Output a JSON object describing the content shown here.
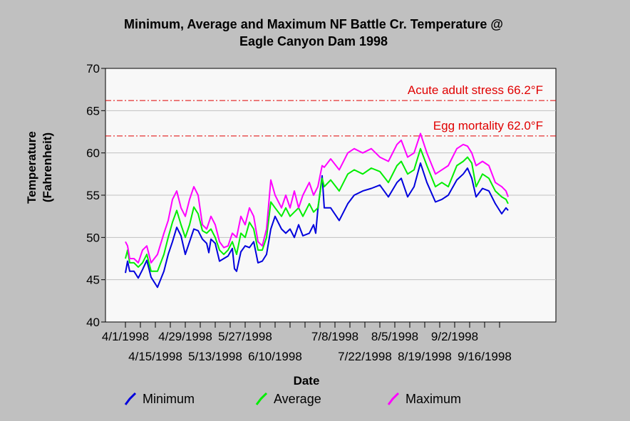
{
  "chart_data": {
    "type": "line",
    "title_lines": [
      "Minimum, Average and Maximum NF Battle  Cr. Temperature @",
      "Eagle Canyon Dam 1998"
    ],
    "xlabel": "Date",
    "ylabel_lines": [
      "Temperature",
      "(Fahrenheit)"
    ],
    "ylim": [
      40,
      70
    ],
    "y_ticks": [
      "40",
      "45",
      "50",
      "55",
      "60",
      "65",
      "70"
    ],
    "x_start": "1998-04-01",
    "x_end": "1998-09-30",
    "x_ticks_upper": [
      {
        "date": "1998-04-01",
        "label": "4/1/1998"
      },
      {
        "date": "1998-04-29",
        "label": "4/29/1998"
      },
      {
        "date": "1998-05-27",
        "label": "5/27/1998"
      },
      {
        "date": "1998-07-08",
        "label": "7/8/1998"
      },
      {
        "date": "1998-08-05",
        "label": "8/5/1998"
      },
      {
        "date": "1998-09-02",
        "label": "9/2/1998"
      }
    ],
    "x_ticks_lower": [
      {
        "date": "1998-04-15",
        "label": "4/15/1998"
      },
      {
        "date": "1998-05-13",
        "label": "5/13/1998"
      },
      {
        "date": "1998-06-10",
        "label": "6/10/1998"
      },
      {
        "date": "1998-07-22",
        "label": "7/22/1998"
      },
      {
        "date": "1998-08-19",
        "label": "8/19/1998"
      },
      {
        "date": "1998-09-16",
        "label": "9/16/1998"
      }
    ],
    "grid": "horizontal",
    "reference_lines": [
      {
        "y": 66.2,
        "label": "Acute adult stress 66.2°F",
        "color": "#e00000"
      },
      {
        "y": 62.0,
        "label": "Egg mortality 62.0°F",
        "color": "#e00000"
      }
    ],
    "series": [
      {
        "name": "Minimum",
        "color": "#0000dd",
        "points": [
          [
            "1998-04-01",
            45.8
          ],
          [
            "1998-04-02",
            47.2
          ],
          [
            "1998-04-03",
            46.0
          ],
          [
            "1998-04-05",
            46.0
          ],
          [
            "1998-04-07",
            45.2
          ],
          [
            "1998-04-09",
            46.2
          ],
          [
            "1998-04-11",
            47.3
          ],
          [
            "1998-04-13",
            45.3
          ],
          [
            "1998-04-16",
            44.1
          ],
          [
            "1998-04-19",
            46.0
          ],
          [
            "1998-04-21",
            48.0
          ],
          [
            "1998-04-23",
            49.5
          ],
          [
            "1998-04-25",
            51.2
          ],
          [
            "1998-04-27",
            50.2
          ],
          [
            "1998-04-29",
            48.0
          ],
          [
            "1998-05-01",
            49.5
          ],
          [
            "1998-05-03",
            51.0
          ],
          [
            "1998-05-05",
            50.8
          ],
          [
            "1998-05-07",
            49.8
          ],
          [
            "1998-05-09",
            49.3
          ],
          [
            "1998-05-10",
            48.2
          ],
          [
            "1998-05-11",
            49.8
          ],
          [
            "1998-05-13",
            49.3
          ],
          [
            "1998-05-15",
            47.2
          ],
          [
            "1998-05-17",
            47.5
          ],
          [
            "1998-05-19",
            47.8
          ],
          [
            "1998-05-21",
            48.7
          ],
          [
            "1998-05-22",
            46.3
          ],
          [
            "1998-05-23",
            46.0
          ],
          [
            "1998-05-25",
            48.3
          ],
          [
            "1998-05-27",
            49.0
          ],
          [
            "1998-05-29",
            48.8
          ],
          [
            "1998-05-31",
            49.5
          ],
          [
            "1998-06-02",
            47.0
          ],
          [
            "1998-06-04",
            47.2
          ],
          [
            "1998-06-06",
            48.0
          ],
          [
            "1998-06-08",
            51.0
          ],
          [
            "1998-06-10",
            52.5
          ],
          [
            "1998-06-13",
            51.0
          ],
          [
            "1998-06-15",
            50.5
          ],
          [
            "1998-06-17",
            51.0
          ],
          [
            "1998-06-19",
            50.0
          ],
          [
            "1998-06-21",
            51.5
          ],
          [
            "1998-06-23",
            50.2
          ],
          [
            "1998-06-26",
            50.5
          ],
          [
            "1998-06-28",
            51.5
          ],
          [
            "1998-06-29",
            50.5
          ],
          [
            "1998-06-30",
            53.3
          ],
          [
            "1998-07-02",
            57.3
          ],
          [
            "1998-07-03",
            53.5
          ],
          [
            "1998-07-06",
            53.5
          ],
          [
            "1998-07-10",
            52.0
          ],
          [
            "1998-07-14",
            54.0
          ],
          [
            "1998-07-17",
            55.0
          ],
          [
            "1998-07-21",
            55.5
          ],
          [
            "1998-07-25",
            55.8
          ],
          [
            "1998-07-29",
            56.2
          ],
          [
            "1998-08-02",
            54.8
          ],
          [
            "1998-08-06",
            56.5
          ],
          [
            "1998-08-08",
            57.0
          ],
          [
            "1998-08-11",
            54.8
          ],
          [
            "1998-08-14",
            56.0
          ],
          [
            "1998-08-17",
            58.8
          ],
          [
            "1998-08-20",
            56.5
          ],
          [
            "1998-08-24",
            54.2
          ],
          [
            "1998-08-27",
            54.5
          ],
          [
            "1998-08-30",
            55.0
          ],
          [
            "1998-09-03",
            56.8
          ],
          [
            "1998-09-06",
            57.5
          ],
          [
            "1998-09-08",
            58.2
          ],
          [
            "1998-09-10",
            57.0
          ],
          [
            "1998-09-12",
            54.8
          ],
          [
            "1998-09-15",
            55.8
          ],
          [
            "1998-09-18",
            55.5
          ],
          [
            "1998-09-21",
            54.0
          ],
          [
            "1998-09-24",
            52.8
          ],
          [
            "1998-09-26",
            53.5
          ],
          [
            "1998-09-27",
            53.2
          ]
        ]
      },
      {
        "name": "Average",
        "color": "#00ee00",
        "points": [
          [
            "1998-04-01",
            47.5
          ],
          [
            "1998-04-02",
            48.5
          ],
          [
            "1998-04-03",
            47.0
          ],
          [
            "1998-04-05",
            47.0
          ],
          [
            "1998-04-07",
            46.5
          ],
          [
            "1998-04-09",
            47.0
          ],
          [
            "1998-04-11",
            48.0
          ],
          [
            "1998-04-13",
            46.0
          ],
          [
            "1998-04-16",
            46.0
          ],
          [
            "1998-04-19",
            48.0
          ],
          [
            "1998-04-21",
            50.0
          ],
          [
            "1998-04-23",
            51.8
          ],
          [
            "1998-04-25",
            53.2
          ],
          [
            "1998-04-27",
            51.5
          ],
          [
            "1998-04-29",
            50.0
          ],
          [
            "1998-05-01",
            51.5
          ],
          [
            "1998-05-03",
            53.6
          ],
          [
            "1998-05-05",
            52.8
          ],
          [
            "1998-05-07",
            50.8
          ],
          [
            "1998-05-09",
            50.5
          ],
          [
            "1998-05-11",
            51.0
          ],
          [
            "1998-05-13",
            50.0
          ],
          [
            "1998-05-15",
            48.5
          ],
          [
            "1998-05-17",
            48.0
          ],
          [
            "1998-05-19",
            48.5
          ],
          [
            "1998-05-21",
            49.5
          ],
          [
            "1998-05-23",
            48.0
          ],
          [
            "1998-05-25",
            50.5
          ],
          [
            "1998-05-27",
            50.0
          ],
          [
            "1998-05-29",
            51.8
          ],
          [
            "1998-05-31",
            51.0
          ],
          [
            "1998-06-02",
            48.5
          ],
          [
            "1998-06-04",
            48.5
          ],
          [
            "1998-06-06",
            50.0
          ],
          [
            "1998-06-08",
            54.2
          ],
          [
            "1998-06-10",
            53.5
          ],
          [
            "1998-06-13",
            52.5
          ],
          [
            "1998-06-15",
            53.5
          ],
          [
            "1998-06-17",
            52.5
          ],
          [
            "1998-06-19",
            53.0
          ],
          [
            "1998-06-21",
            53.5
          ],
          [
            "1998-06-23",
            52.5
          ],
          [
            "1998-06-26",
            54.0
          ],
          [
            "1998-06-28",
            53.0
          ],
          [
            "1998-06-30",
            53.5
          ],
          [
            "1998-07-02",
            57.0
          ],
          [
            "1998-07-03",
            56.0
          ],
          [
            "1998-07-06",
            56.8
          ],
          [
            "1998-07-10",
            55.5
          ],
          [
            "1998-07-14",
            57.5
          ],
          [
            "1998-07-17",
            58.0
          ],
          [
            "1998-07-21",
            57.5
          ],
          [
            "1998-07-25",
            58.2
          ],
          [
            "1998-07-29",
            57.8
          ],
          [
            "1998-08-02",
            56.5
          ],
          [
            "1998-08-06",
            58.5
          ],
          [
            "1998-08-08",
            59.0
          ],
          [
            "1998-08-11",
            57.5
          ],
          [
            "1998-08-14",
            58.0
          ],
          [
            "1998-08-17",
            60.5
          ],
          [
            "1998-08-20",
            58.5
          ],
          [
            "1998-08-24",
            56.0
          ],
          [
            "1998-08-27",
            56.5
          ],
          [
            "1998-08-30",
            56.0
          ],
          [
            "1998-09-03",
            58.5
          ],
          [
            "1998-09-06",
            59.0
          ],
          [
            "1998-09-08",
            59.5
          ],
          [
            "1998-09-10",
            58.8
          ],
          [
            "1998-09-12",
            56.0
          ],
          [
            "1998-09-15",
            57.5
          ],
          [
            "1998-09-18",
            57.0
          ],
          [
            "1998-09-21",
            55.5
          ],
          [
            "1998-09-24",
            54.8
          ],
          [
            "1998-09-26",
            54.5
          ],
          [
            "1998-09-27",
            54.0
          ]
        ]
      },
      {
        "name": "Maximum",
        "color": "#ff00ff",
        "points": [
          [
            "1998-04-01",
            49.5
          ],
          [
            "1998-04-02",
            49.0
          ],
          [
            "1998-04-03",
            47.5
          ],
          [
            "1998-04-05",
            47.5
          ],
          [
            "1998-04-07",
            47.0
          ],
          [
            "1998-04-09",
            48.5
          ],
          [
            "1998-04-11",
            49.0
          ],
          [
            "1998-04-13",
            47.0
          ],
          [
            "1998-04-16",
            48.0
          ],
          [
            "1998-04-19",
            50.5
          ],
          [
            "1998-04-21",
            52.0
          ],
          [
            "1998-04-23",
            54.5
          ],
          [
            "1998-04-25",
            55.5
          ],
          [
            "1998-04-27",
            53.5
          ],
          [
            "1998-04-29",
            52.5
          ],
          [
            "1998-05-01",
            54.5
          ],
          [
            "1998-05-03",
            56.0
          ],
          [
            "1998-05-05",
            55.0
          ],
          [
            "1998-05-07",
            51.5
          ],
          [
            "1998-05-09",
            51.0
          ],
          [
            "1998-05-11",
            52.5
          ],
          [
            "1998-05-13",
            51.5
          ],
          [
            "1998-05-15",
            49.5
          ],
          [
            "1998-05-17",
            48.8
          ],
          [
            "1998-05-19",
            49.0
          ],
          [
            "1998-05-21",
            50.5
          ],
          [
            "1998-05-23",
            50.0
          ],
          [
            "1998-05-25",
            52.5
          ],
          [
            "1998-05-27",
            51.5
          ],
          [
            "1998-05-29",
            53.5
          ],
          [
            "1998-05-31",
            52.5
          ],
          [
            "1998-06-02",
            49.5
          ],
          [
            "1998-06-04",
            49.0
          ],
          [
            "1998-06-06",
            51.0
          ],
          [
            "1998-06-08",
            56.8
          ],
          [
            "1998-06-10",
            55.0
          ],
          [
            "1998-06-13",
            53.5
          ],
          [
            "1998-06-15",
            55.0
          ],
          [
            "1998-06-17",
            53.5
          ],
          [
            "1998-06-19",
            55.5
          ],
          [
            "1998-06-21",
            53.5
          ],
          [
            "1998-06-23",
            55.0
          ],
          [
            "1998-06-26",
            56.5
          ],
          [
            "1998-06-28",
            55.0
          ],
          [
            "1998-06-30",
            56.0
          ],
          [
            "1998-07-02",
            58.5
          ],
          [
            "1998-07-03",
            58.3
          ],
          [
            "1998-07-06",
            59.3
          ],
          [
            "1998-07-10",
            58.0
          ],
          [
            "1998-07-14",
            60.0
          ],
          [
            "1998-07-17",
            60.5
          ],
          [
            "1998-07-21",
            60.0
          ],
          [
            "1998-07-25",
            60.5
          ],
          [
            "1998-07-29",
            59.5
          ],
          [
            "1998-08-02",
            59.0
          ],
          [
            "1998-08-06",
            61.0
          ],
          [
            "1998-08-08",
            61.5
          ],
          [
            "1998-08-11",
            59.5
          ],
          [
            "1998-08-14",
            60.0
          ],
          [
            "1998-08-17",
            62.3
          ],
          [
            "1998-08-20",
            60.0
          ],
          [
            "1998-08-24",
            57.5
          ],
          [
            "1998-08-27",
            58.0
          ],
          [
            "1998-08-30",
            58.5
          ],
          [
            "1998-09-03",
            60.5
          ],
          [
            "1998-09-06",
            61.0
          ],
          [
            "1998-09-08",
            60.8
          ],
          [
            "1998-09-10",
            60.0
          ],
          [
            "1998-09-12",
            58.5
          ],
          [
            "1998-09-15",
            59.0
          ],
          [
            "1998-09-18",
            58.5
          ],
          [
            "1998-09-21",
            56.5
          ],
          [
            "1998-09-24",
            56.0
          ],
          [
            "1998-09-26",
            55.5
          ],
          [
            "1998-09-27",
            54.8
          ]
        ]
      }
    ]
  }
}
